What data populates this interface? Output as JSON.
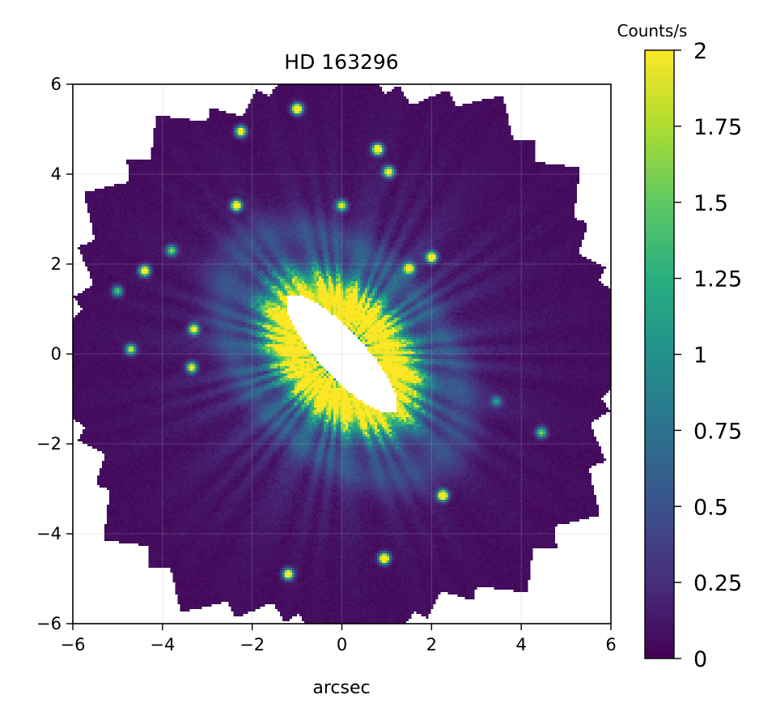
{
  "chart_data": {
    "type": "heatmap",
    "title": "HD 163296",
    "xlabel": "arcsec",
    "ylabel": "",
    "xlim": [
      -6,
      6
    ],
    "ylim": [
      -6,
      6
    ],
    "x_ticks": [
      -6,
      -4,
      -2,
      0,
      2,
      4,
      6
    ],
    "y_ticks": [
      -6,
      -4,
      -2,
      0,
      2,
      4,
      6
    ],
    "x_tick_labels": [
      "−6",
      "−4",
      "−2",
      "0",
      "2",
      "4",
      "6"
    ],
    "y_tick_labels": [
      "−6",
      "−4",
      "−2",
      "0",
      "2",
      "4",
      "6"
    ],
    "grid": true,
    "colormap": "viridis",
    "colorbar": {
      "label": "Counts/s",
      "range": [
        0,
        2
      ],
      "ticks": [
        0,
        0.25,
        0.5,
        0.75,
        1,
        1.25,
        1.5,
        1.75,
        2
      ],
      "tick_labels": [
        "0",
        "0.25",
        "0.5",
        "0.75",
        "1",
        "1.25",
        "1.5",
        "1.75",
        "2"
      ]
    },
    "background_color": "#ffffff",
    "mask_description": "Pixels outside the rotated-field mosaic and inside the coronagraph occulter are masked (white)",
    "disk": {
      "center": [
        0,
        0
      ],
      "position_angle_deg": 133,
      "inner_ring_radius_arcsec": 1.4,
      "outer_ring_radius_arcsec": 3.2
    },
    "point_sources": [
      {
        "x": 0.8,
        "y": 4.55,
        "value": 2
      },
      {
        "x": -1.0,
        "y": 5.45,
        "value": 2
      },
      {
        "x": 1.05,
        "y": 4.05,
        "value": 1.6
      },
      {
        "x": -2.35,
        "y": 3.3,
        "value": 1.8
      },
      {
        "x": 0.0,
        "y": 3.3,
        "value": 1.3
      },
      {
        "x": -4.4,
        "y": 1.85,
        "value": 1.7
      },
      {
        "x": -3.8,
        "y": 2.3,
        "value": 1.0
      },
      {
        "x": -5.0,
        "y": 1.4,
        "value": 0.9
      },
      {
        "x": -3.3,
        "y": 0.55,
        "value": 1.5
      },
      {
        "x": -4.7,
        "y": 0.1,
        "value": 1.2
      },
      {
        "x": -3.35,
        "y": -0.3,
        "value": 1.4
      },
      {
        "x": 2.25,
        "y": -3.15,
        "value": 2
      },
      {
        "x": 0.95,
        "y": -4.55,
        "value": 2
      },
      {
        "x": -1.2,
        "y": -4.9,
        "value": 1.7
      },
      {
        "x": 4.45,
        "y": -1.75,
        "value": 1.0
      },
      {
        "x": -2.25,
        "y": 4.95,
        "value": 1.6
      },
      {
        "x": 1.5,
        "y": 1.9,
        "value": 1.5
      },
      {
        "x": 2.0,
        "y": 2.15,
        "value": 1.8
      },
      {
        "x": 3.45,
        "y": -1.05,
        "value": 0.6
      }
    ]
  }
}
